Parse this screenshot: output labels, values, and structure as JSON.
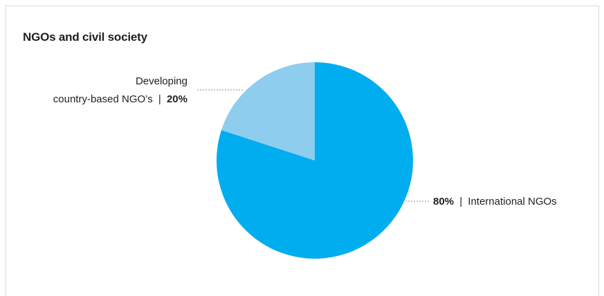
{
  "chart_data": {
    "type": "pie",
    "title": "NGOs and civil society",
    "slices": [
      {
        "label": "International NGOs",
        "value": 80,
        "value_text": "80%",
        "color": "#00adef"
      },
      {
        "label_lines": [
          "Developing",
          "country-based NGO’s"
        ],
        "value": 20,
        "value_text": "20%",
        "color": "#8fcdef"
      }
    ],
    "separator": "|",
    "start_angle_deg": 0,
    "direction": "clockwise"
  }
}
